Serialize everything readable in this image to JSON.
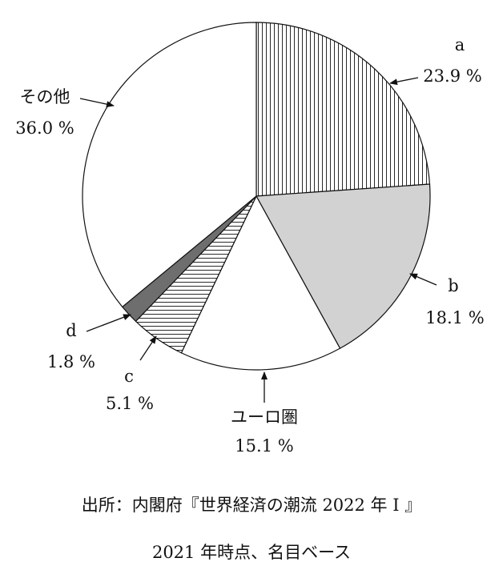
{
  "chart_data": {
    "type": "pie",
    "slices": [
      {
        "label": "a",
        "value": 23.9,
        "value_text": "23.9 %",
        "fill": "vstripe",
        "color": "#ffffff"
      },
      {
        "label": "b",
        "value": 18.1,
        "value_text": "18.1 %",
        "fill": "solid",
        "color": "#d2d2d2"
      },
      {
        "label": "ユーロ圏",
        "value": 15.1,
        "value_text": "15.1 %",
        "fill": "solid",
        "color": "#ffffff"
      },
      {
        "label": "c",
        "value": 5.1,
        "value_text": "5.1 %",
        "fill": "hstripe",
        "color": "#ffffff"
      },
      {
        "label": "d",
        "value": 1.8,
        "value_text": "1.8 %",
        "fill": "solid",
        "color": "#6e6e6e"
      },
      {
        "label": "その他",
        "value": 36.0,
        "value_text": "36.0 %",
        "fill": "solid",
        "color": "#ffffff"
      }
    ],
    "start": "12 o'clock",
    "direction": "clockwise"
  },
  "source": {
    "line1": "出所：内閣府『世界経済の潮流 2022 年 I 』",
    "line2": "2021 年時点、名目ベース"
  }
}
